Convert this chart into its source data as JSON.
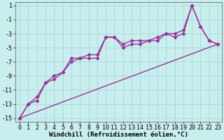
{
  "xlabel": "Windchill (Refroidissement éolien,°C)",
  "background_color": "#c8eeee",
  "grid_color": "#a8d8d8",
  "line_color": "#993399",
  "xlim": [
    -0.5,
    23.5
  ],
  "ylim": [
    -15.5,
    1.5
  ],
  "xticks": [
    0,
    1,
    2,
    3,
    4,
    5,
    6,
    7,
    8,
    9,
    10,
    11,
    12,
    13,
    14,
    15,
    16,
    17,
    18,
    19,
    20,
    21,
    22,
    23
  ],
  "yticks": [
    1,
    -1,
    -3,
    -5,
    -7,
    -9,
    -11,
    -13,
    -15
  ],
  "curve1_x": [
    0,
    1,
    2,
    3,
    4,
    5,
    6,
    7,
    8,
    9,
    10,
    11,
    12,
    13,
    14,
    15,
    16,
    17,
    18,
    19,
    20,
    21,
    22,
    23
  ],
  "curve1_y": [
    -15,
    -13,
    -12.5,
    -10,
    -9.5,
    -8.5,
    -6.5,
    -6.5,
    -6,
    -6,
    -3.5,
    -3.5,
    -5,
    -4.5,
    -4.5,
    -4,
    -3.5,
    -3,
    -3.5,
    -3,
    1,
    -2,
    -4,
    -4.5
  ],
  "curve2_x": [
    0,
    1,
    2,
    3,
    4,
    5,
    6,
    7,
    8,
    9,
    10,
    11,
    12,
    13,
    14,
    15,
    16,
    17,
    18,
    19,
    20,
    21,
    22,
    23
  ],
  "curve2_y": [
    -15,
    -13,
    -12,
    -10,
    -9,
    -8.5,
    -7,
    -6.5,
    -6.5,
    -6.5,
    -3.5,
    -3.5,
    -4.5,
    -4,
    -4,
    -4,
    -4,
    -3,
    -3,
    -2.5,
    1,
    -2,
    -4,
    -4.5
  ],
  "line3_x": [
    0,
    23
  ],
  "line3_y": [
    -15,
    -4.5
  ],
  "tick_fontsize": 6,
  "xlabel_fontsize": 6.5
}
